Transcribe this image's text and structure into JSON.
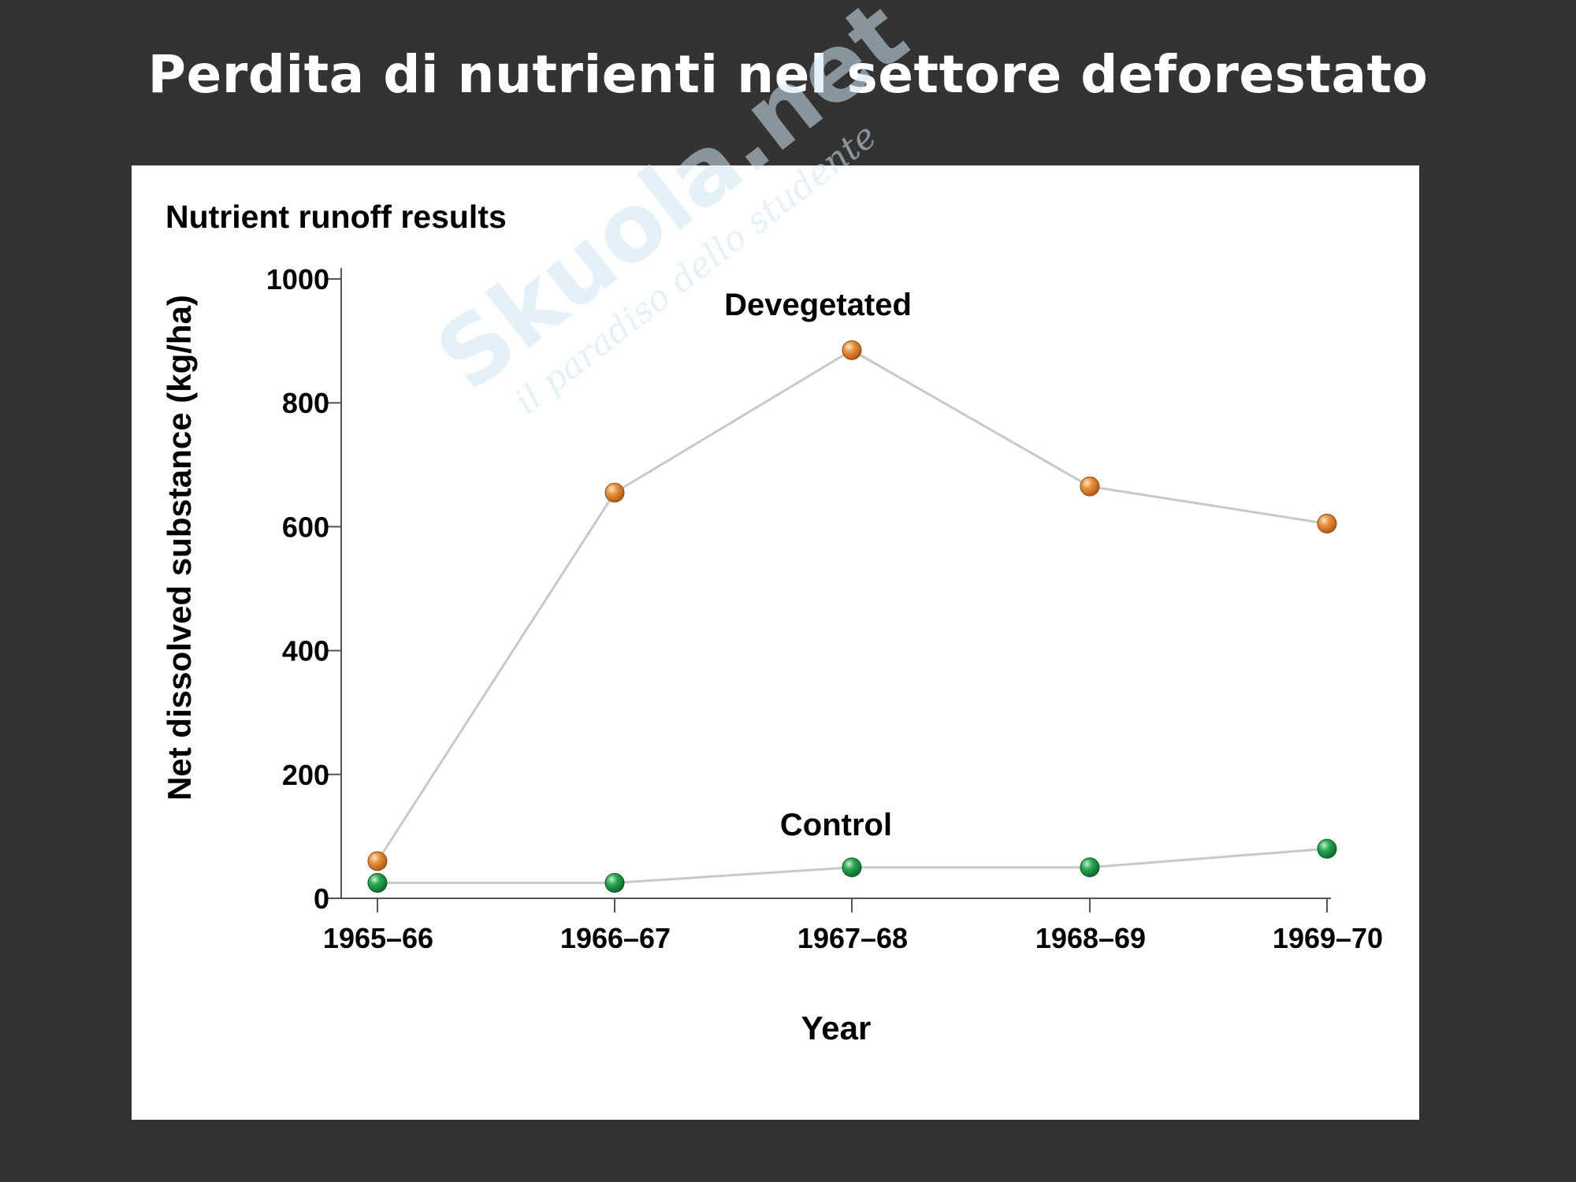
{
  "slide": {
    "title": "Perdita di  nutrienti nel settore deforestato"
  },
  "watermark": {
    "brand": "Skuola.net",
    "tagline": "il paradiso dello studente"
  },
  "colors": {
    "background": "#333333",
    "panel": "#ffffff",
    "line": "#c8c8c8",
    "devegetated_marker": "#e0822a",
    "control_marker": "#1e9a48"
  },
  "chart_data": {
    "type": "line",
    "title": "Nutrient runoff results",
    "xlabel": "Year",
    "ylabel": "Net dissolved substance (kg/ha)",
    "categories": [
      "1965–66",
      "1966–67",
      "1967–68",
      "1968–69",
      "1969–70"
    ],
    "y_ticks": [
      0,
      200,
      400,
      600,
      800,
      1000
    ],
    "ylim": [
      0,
      1000
    ],
    "grid": false,
    "series": [
      {
        "name": "Devegetated",
        "values": [
          60,
          655,
          885,
          665,
          605
        ],
        "color": "#e0822a"
      },
      {
        "name": "Control",
        "values": [
          25,
          25,
          50,
          50,
          80
        ],
        "color": "#1e9a48"
      }
    ]
  }
}
